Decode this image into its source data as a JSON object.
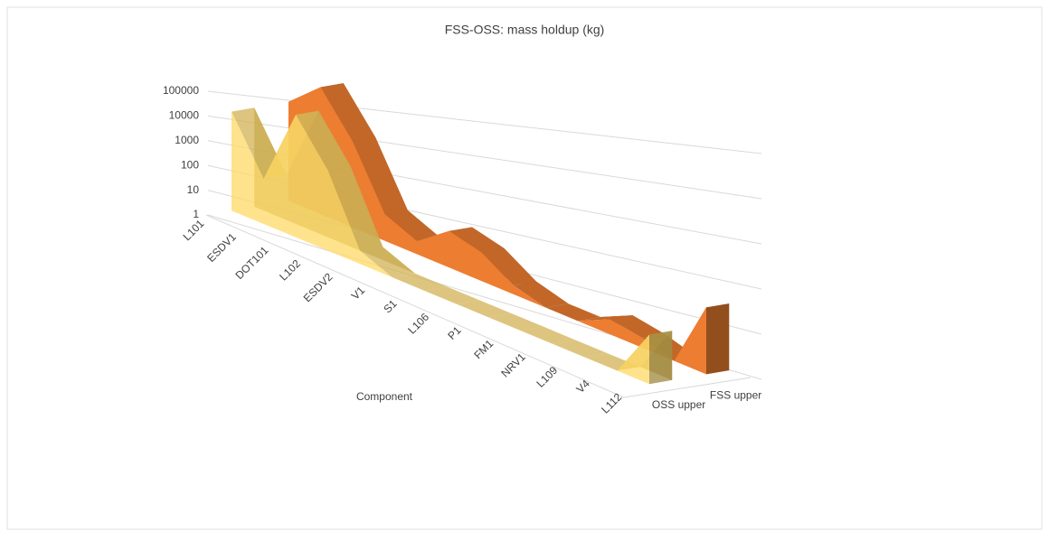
{
  "chart_data": {
    "type": "area3d",
    "title": "FSS-OSS: mass holdup (kg)",
    "x_label": "Component",
    "categories": [
      "L101",
      "ESDV1",
      "DOT101",
      "L102",
      "ESDV2",
      "V1",
      "S1",
      "L106",
      "P1",
      "FM1",
      "NRV1",
      "L109",
      "V4",
      "L112"
    ],
    "series": [
      {
        "name": "OSS upper",
        "color": "#ffd966",
        "values": [
          10000,
          60,
          50000,
          1000,
          3,
          1,
          1,
          1,
          1,
          1,
          1,
          1,
          1,
          30
        ]
      },
      {
        "name": "FSS upper",
        "color": "#ed7d31",
        "values": [
          10000,
          100000,
          2000,
          10,
          3,
          20,
          10,
          2,
          1,
          1,
          3,
          2,
          1,
          100
        ]
      }
    ],
    "ylog": true,
    "ylim": [
      1,
      100000
    ],
    "yticks": [
      1,
      10,
      100,
      1000,
      10000,
      100000
    ],
    "grid": true
  }
}
